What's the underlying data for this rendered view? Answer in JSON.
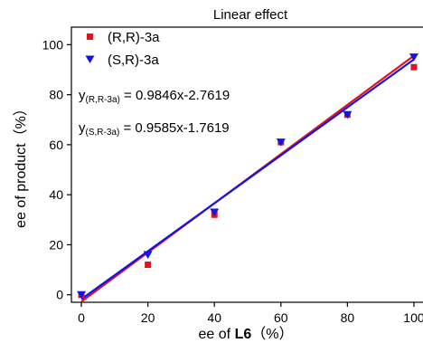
{
  "chart_data": {
    "type": "scatter",
    "title": "Linear effect",
    "xlabel_prefix": "ee of ",
    "xlabel_bold": "L6",
    "xlabel_suffix": "（%）",
    "ylabel": "ee of product（%）",
    "xlim": [
      -3,
      103
    ],
    "ylim": [
      -3,
      107
    ],
    "xticks": [
      0,
      20,
      40,
      60,
      80,
      100
    ],
    "yticks": [
      0,
      20,
      40,
      60,
      80,
      100
    ],
    "grid": false,
    "legend_position": "top-left",
    "series": [
      {
        "name": "(R,R)-3a",
        "marker": "square",
        "color": "#e0141e",
        "points": [
          [
            0,
            0
          ],
          [
            20,
            12
          ],
          [
            40,
            32
          ],
          [
            60,
            61
          ],
          [
            80,
            72
          ],
          [
            100,
            91
          ]
        ],
        "fit_color": "#e0141e",
        "fit": [
          0,
          -2.7619,
          100,
          95.6
        ],
        "equation_main": "y",
        "equation_sub": "(R,R-3a)",
        "equation_rest": " = 0.9846x-2.7619"
      },
      {
        "name": "(S,R)-3a",
        "marker": "triangle-down",
        "color": "#1414e6",
        "points": [
          [
            0,
            0
          ],
          [
            20,
            16
          ],
          [
            40,
            33
          ],
          [
            60,
            61
          ],
          [
            80,
            72
          ],
          [
            100,
            95
          ]
        ],
        "fit_color": "#1414e6",
        "fit": [
          0,
          -1.7619,
          100,
          94.1
        ],
        "equation_main": "y",
        "equation_sub": "(S,R-3a)",
        "equation_rest": " = 0.9585x-1.7619"
      }
    ]
  }
}
